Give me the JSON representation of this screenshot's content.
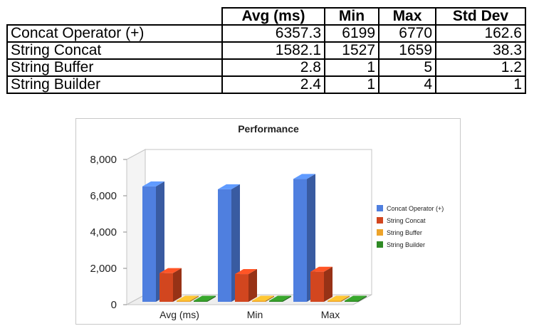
{
  "table": {
    "headers": [
      "",
      "Avg (ms)",
      "Min",
      "Max",
      "Std Dev"
    ],
    "rows": [
      {
        "label": "Concat Operator (+)",
        "avg": "6357.3",
        "min": "6199",
        "max": "6770",
        "std": "162.6"
      },
      {
        "label": "String Concat",
        "avg": "1582.1",
        "min": "1527",
        "max": "1659",
        "std": "38.3"
      },
      {
        "label": "String Buffer",
        "avg": "2.8",
        "min": "1",
        "max": "5",
        "std": "1.2"
      },
      {
        "label": "String Builder",
        "avg": "2.4",
        "min": "1",
        "max": "4",
        "std": "1"
      }
    ]
  },
  "chart_data": {
    "type": "bar",
    "style": "3d-clustered",
    "title": "Performance",
    "categories": [
      "Avg (ms)",
      "Min",
      "Max"
    ],
    "series": [
      {
        "name": "Concat Operator (+)",
        "values": [
          6357.3,
          6199,
          6770
        ],
        "color": "#4f7fdf"
      },
      {
        "name": "String Concat",
        "values": [
          1582.1,
          1527,
          1659
        ],
        "color": "#d2461f"
      },
      {
        "name": "String Buffer",
        "values": [
          2.8,
          1,
          5
        ],
        "color": "#eda32a"
      },
      {
        "name": "String Builder",
        "values": [
          2.4,
          1,
          4
        ],
        "color": "#2f8a25"
      }
    ],
    "ylim": [
      0,
      8000
    ],
    "yticks": [
      0,
      2000,
      4000,
      6000,
      8000
    ],
    "ytick_labels": [
      "0",
      "2,000",
      "4,000",
      "6,000",
      "8,000"
    ],
    "xlabel": "",
    "ylabel": "",
    "grid": false,
    "legend_position": "right"
  }
}
